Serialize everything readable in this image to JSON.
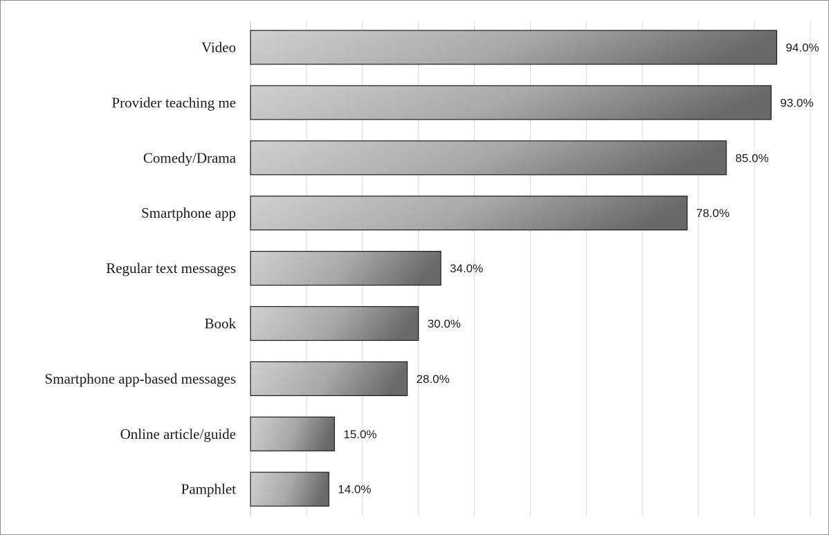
{
  "chart_data": {
    "type": "bar",
    "orientation": "horizontal",
    "categories": [
      "Video",
      "Provider teaching me",
      "Comedy/Drama",
      "Smartphone app",
      "Regular text messages",
      "Book",
      "Smartphone app-based messages",
      "Online article/guide",
      "Pamphlet"
    ],
    "values": [
      94.0,
      93.0,
      85.0,
      78.0,
      34.0,
      30.0,
      28.0,
      15.0,
      14.0
    ],
    "value_labels": [
      "94.0%",
      "93.0%",
      "85.0%",
      "78.0%",
      "34.0%",
      "30.0%",
      "28.0%",
      "15.0%",
      "14.0%"
    ],
    "title": "",
    "xlabel": "",
    "ylabel": "",
    "xlim": [
      0,
      100
    ],
    "grid": true,
    "legend": "none",
    "colors": {
      "bar_light": "#d0d0d0",
      "bar_dark": "#6a6a6a",
      "bar_stroke": "#1a1a1a",
      "grid": "#d9d9d9"
    }
  }
}
